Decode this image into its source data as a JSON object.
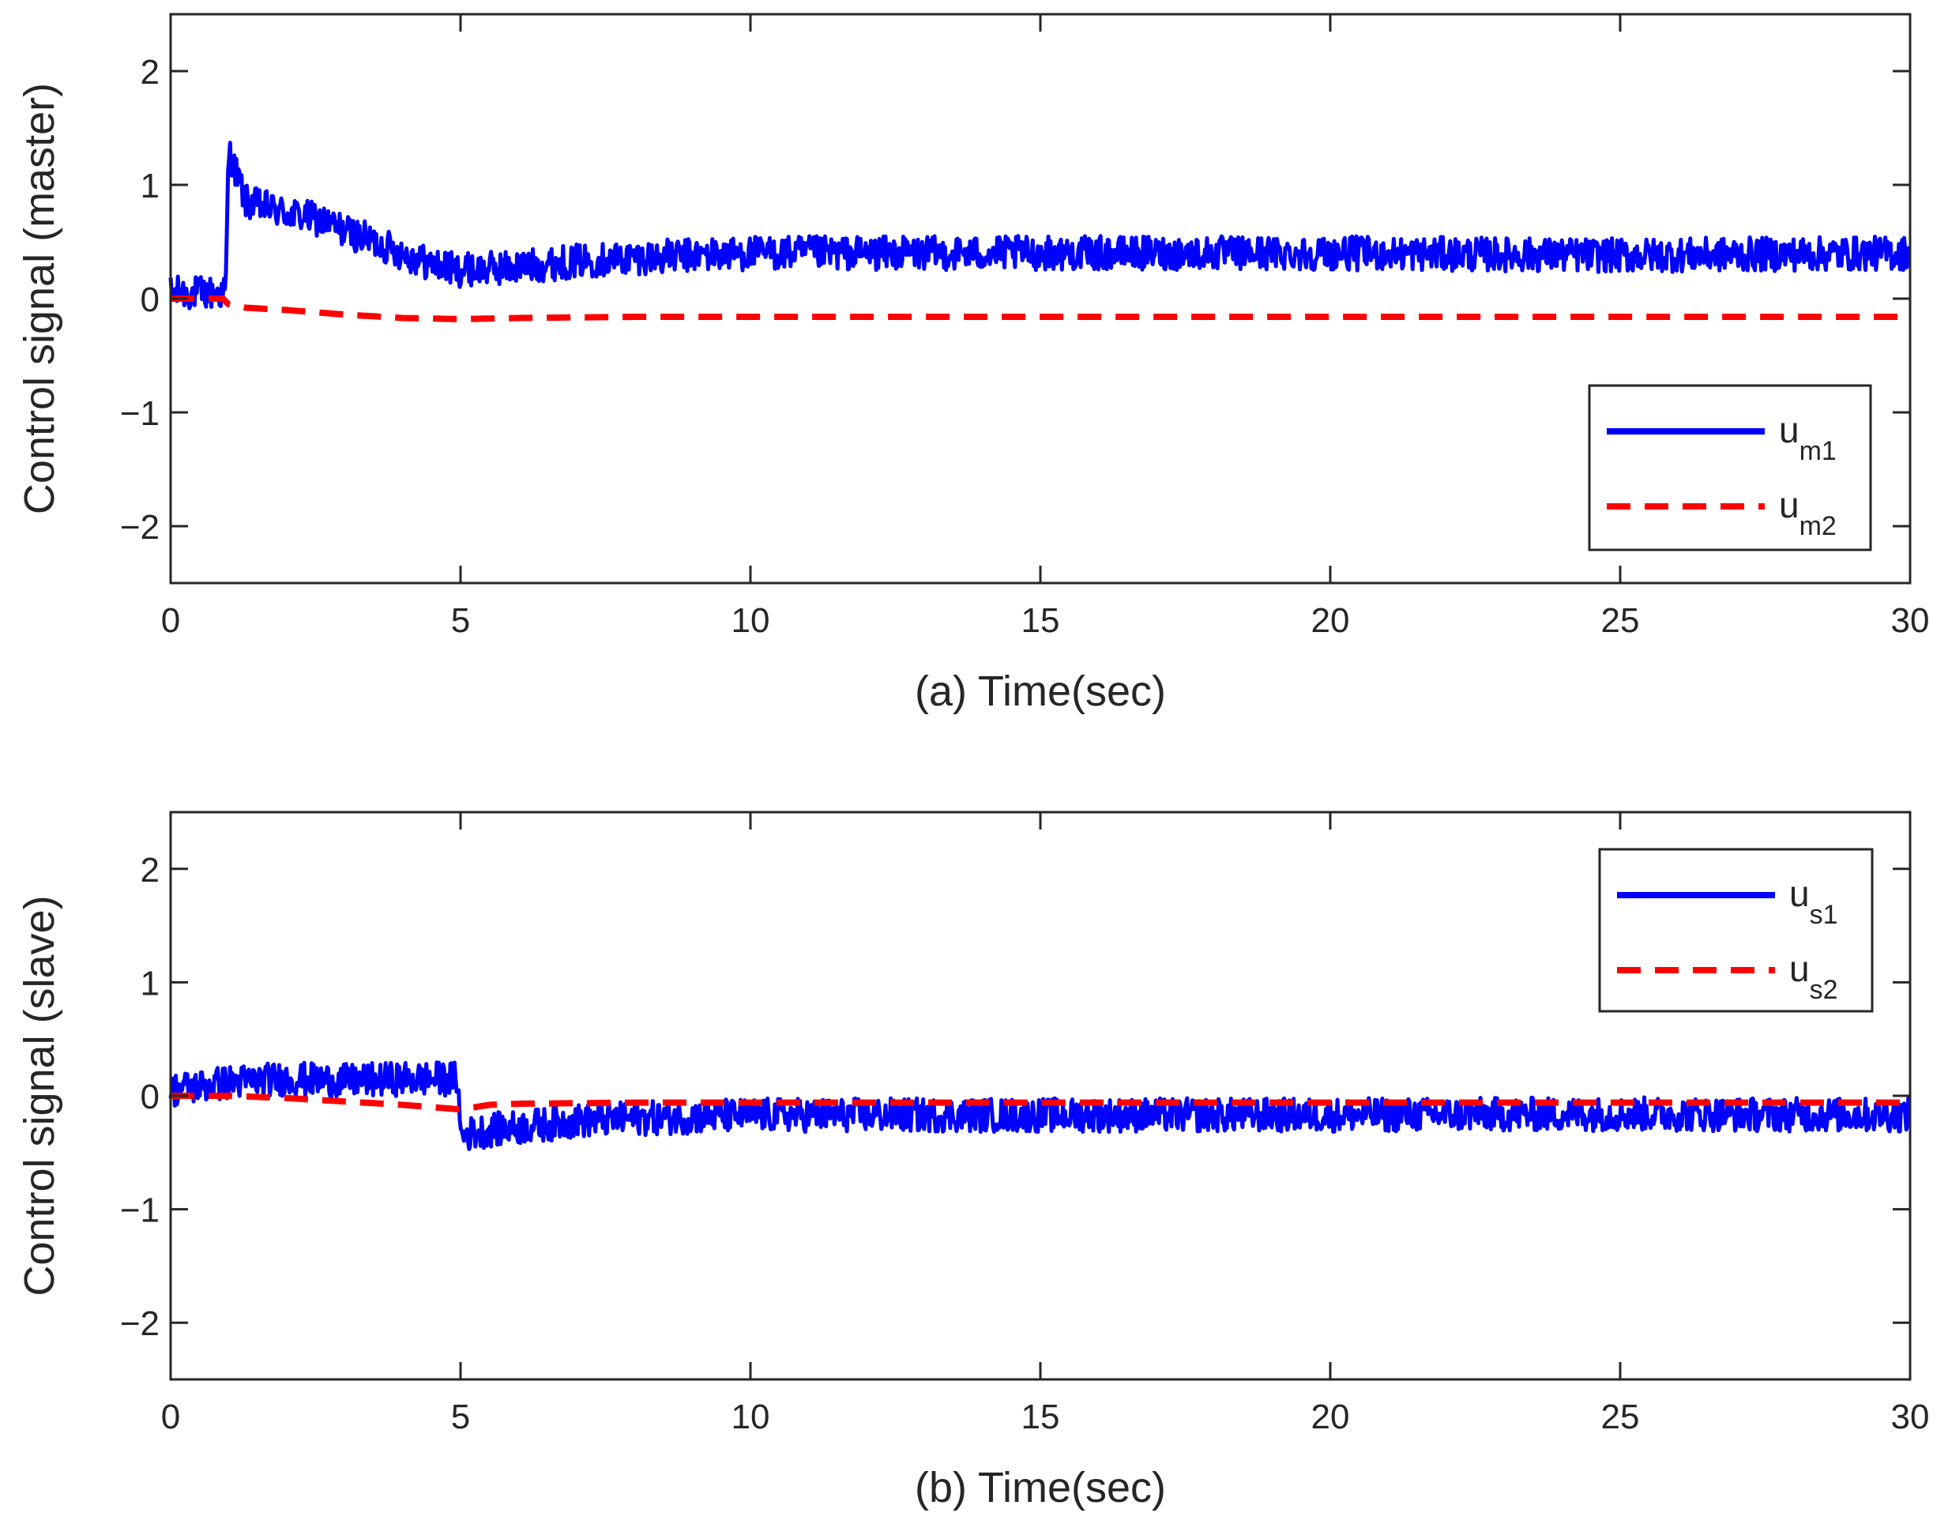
{
  "chart_data": [
    {
      "type": "line",
      "panel": "a",
      "xlabel": "(a) Time(sec)",
      "ylabel": "Control signal (master)",
      "xlim": [
        0,
        30
      ],
      "ylim": [
        -2.5,
        2.5
      ],
      "xticks": [
        0,
        5,
        10,
        15,
        20,
        25,
        30
      ],
      "xtick_labels": [
        "0",
        "5",
        "10",
        "15",
        "20",
        "25",
        "30"
      ],
      "yticks": [
        2,
        1,
        0,
        -1,
        -2
      ],
      "ytick_labels": [
        "2",
        "1",
        "0",
        "−1",
        "−2"
      ],
      "grid": false,
      "legend_position": "bottom-right",
      "series": [
        {
          "name": "u",
          "subscript": "m1",
          "color": "#0000ff",
          "style": "solid",
          "noise_amplitude": 0.15,
          "x": [
            0,
            0.95,
            1.0,
            1.3,
            2.0,
            2.5,
            3.0,
            3.5,
            4.0,
            4.5,
            5.0,
            6.0,
            7.0,
            8.0,
            10.0,
            15.0,
            20.0,
            25.0,
            30.0
          ],
          "y": [
            0.05,
            0.05,
            1.3,
            0.85,
            0.75,
            0.7,
            0.6,
            0.5,
            0.4,
            0.3,
            0.25,
            0.28,
            0.33,
            0.36,
            0.4,
            0.4,
            0.4,
            0.38,
            0.4
          ]
        },
        {
          "name": "u",
          "subscript": "m2",
          "color": "#ff0000",
          "style": "dashed",
          "noise_amplitude": 0,
          "x": [
            0,
            0.9,
            1.0,
            1.3,
            2.0,
            3.0,
            4.0,
            5.0,
            6.0,
            8.0,
            30.0
          ],
          "y": [
            0,
            0,
            -0.05,
            -0.08,
            -0.1,
            -0.14,
            -0.17,
            -0.18,
            -0.17,
            -0.16,
            -0.16
          ]
        }
      ]
    },
    {
      "type": "line",
      "panel": "b",
      "xlabel": "(b) Time(sec)",
      "ylabel": "Control signal (slave)",
      "xlim": [
        0,
        30
      ],
      "ylim": [
        -2.5,
        2.5
      ],
      "xticks": [
        0,
        5,
        10,
        15,
        20,
        25,
        30
      ],
      "xtick_labels": [
        "0",
        "5",
        "10",
        "15",
        "20",
        "25",
        "30"
      ],
      "yticks": [
        2,
        1,
        0,
        -1,
        -2
      ],
      "ytick_labels": [
        "2",
        "1",
        "0",
        "−1",
        "−2"
      ],
      "grid": false,
      "legend_position": "top-right",
      "series": [
        {
          "name": "u",
          "subscript": "s1",
          "color": "#0000ff",
          "style": "solid",
          "noise_amplitude": 0.15,
          "x": [
            0,
            1.0,
            2.0,
            3.0,
            4.0,
            4.95,
            5.0,
            5.5,
            6.0,
            7.0,
            8.0,
            10.0,
            15.0,
            20.0,
            25.0,
            30.0
          ],
          "y": [
            0.05,
            0.12,
            0.15,
            0.13,
            0.15,
            0.15,
            -0.35,
            -0.3,
            -0.28,
            -0.22,
            -0.2,
            -0.17,
            -0.17,
            -0.17,
            -0.16,
            -0.17
          ]
        },
        {
          "name": "u",
          "subscript": "s2",
          "color": "#ff0000",
          "style": "dashed",
          "noise_amplitude": 0,
          "x": [
            0,
            1.0,
            2.0,
            3.0,
            4.0,
            5.0,
            5.5,
            6.0,
            8.0,
            30.0
          ],
          "y": [
            0,
            0,
            -0.02,
            -0.05,
            -0.08,
            -0.12,
            -0.08,
            -0.07,
            -0.06,
            -0.06
          ]
        }
      ]
    }
  ]
}
